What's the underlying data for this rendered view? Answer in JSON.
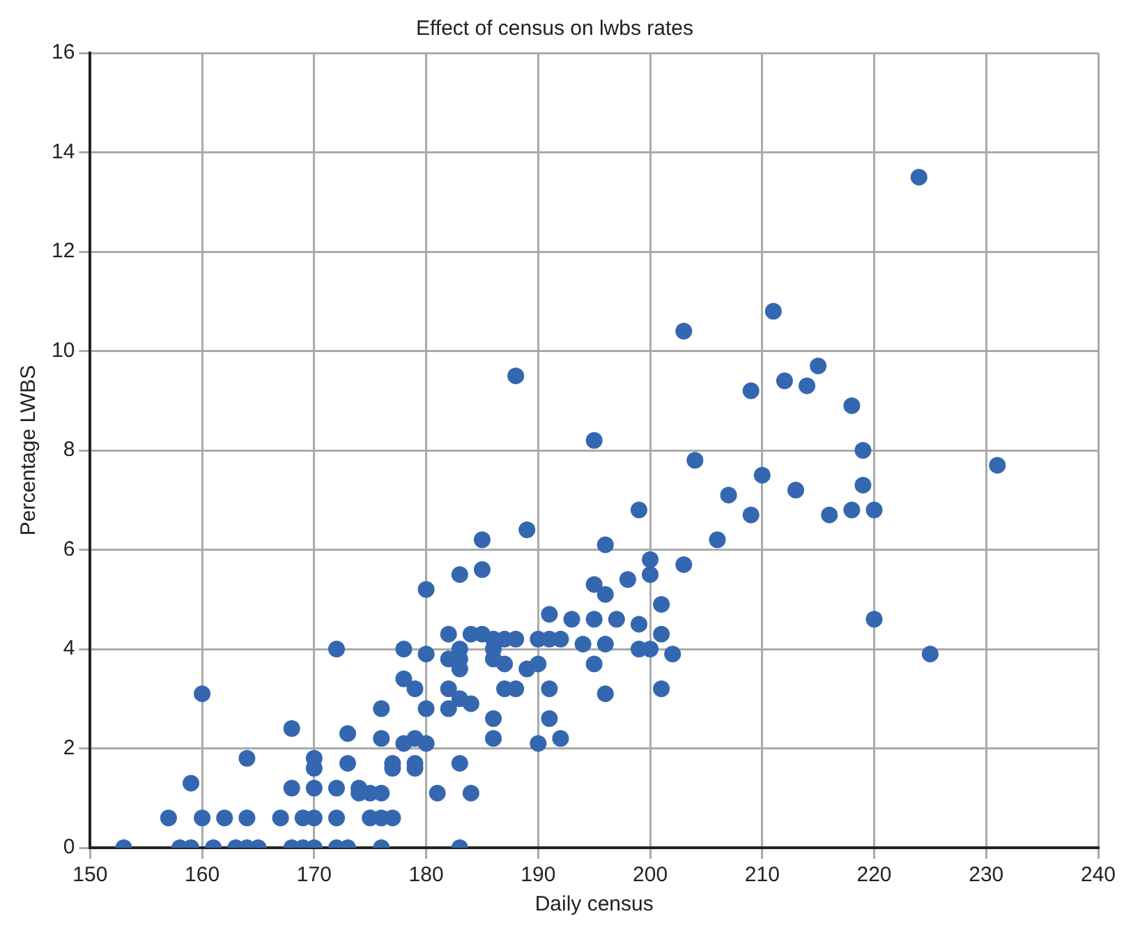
{
  "chart_data": {
    "type": "scatter",
    "title": "Effect of census on lwbs rates",
    "xlabel": "Daily census",
    "ylabel": "Percentage LWBS",
    "x": [
      153,
      157,
      158,
      159,
      159,
      160,
      160,
      161,
      162,
      163,
      164,
      164,
      164,
      165,
      167,
      168,
      168,
      168,
      169,
      169,
      170,
      170,
      170,
      170,
      170,
      172,
      172,
      172,
      172,
      173,
      173,
      173,
      174,
      174,
      175,
      175,
      176,
      176,
      176,
      176,
      176,
      177,
      177,
      177,
      178,
      178,
      178,
      179,
      179,
      179,
      179,
      180,
      180,
      180,
      180,
      181,
      182,
      182,
      182,
      182,
      183,
      183,
      183,
      183,
      183,
      183,
      183,
      184,
      184,
      184,
      185,
      185,
      185,
      186,
      186,
      186,
      186,
      186,
      187,
      187,
      187,
      188,
      188,
      188,
      189,
      189,
      190,
      190,
      190,
      191,
      191,
      191,
      191,
      192,
      192,
      193,
      194,
      195,
      195,
      195,
      195,
      196,
      196,
      196,
      196,
      197,
      198,
      199,
      199,
      199,
      200,
      200,
      200,
      201,
      201,
      201,
      202,
      203,
      203,
      204,
      206,
      207,
      209,
      209,
      210,
      211,
      212,
      213,
      214,
      215,
      216,
      218,
      218,
      219,
      219,
      220,
      220,
      224,
      225,
      231
    ],
    "values": [
      0,
      0.6,
      0,
      0,
      1.3,
      3.1,
      0.6,
      0,
      0.6,
      0,
      0,
      0.6,
      1.8,
      0,
      0.6,
      2.4,
      0,
      1.2,
      0.6,
      0,
      1.2,
      1.8,
      1.6,
      0.6,
      0,
      4.0,
      1.2,
      0.6,
      0,
      2.3,
      1.7,
      0,
      1.2,
      1.1,
      1.1,
      0.6,
      1.1,
      0.6,
      0,
      2.8,
      2.2,
      0.6,
      1.7,
      1.6,
      4.0,
      3.4,
      2.1,
      3.2,
      2.2,
      1.7,
      1.6,
      5.2,
      3.9,
      2.8,
      2.1,
      1.1,
      4.3,
      3.8,
      3.2,
      2.8,
      5.5,
      4.0,
      3.8,
      3.6,
      3.0,
      1.7,
      0,
      4.3,
      2.9,
      1.1,
      6.2,
      5.6,
      4.3,
      4.0,
      3.8,
      4.2,
      2.6,
      2.2,
      3.2,
      3.7,
      4.2,
      9.5,
      4.2,
      3.2,
      6.4,
      3.6,
      4.2,
      2.1,
      3.7,
      4.7,
      3.2,
      2.6,
      4.2,
      4.2,
      2.2,
      4.6,
      4.1,
      8.2,
      5.3,
      4.6,
      3.7,
      6.1,
      5.1,
      4.1,
      3.1,
      4.6,
      5.4,
      4.5,
      6.8,
      4.0,
      5.8,
      5.5,
      4.0,
      4.9,
      4.3,
      3.2,
      3.9,
      10.4,
      5.7,
      7.8,
      6.2,
      7.1,
      9.2,
      6.7,
      7.5,
      10.8,
      9.4,
      7.2,
      9.3,
      9.7,
      6.7,
      8.9,
      6.8,
      8.0,
      7.3,
      6.8,
      4.6,
      13.5,
      3.9,
      7.7
    ],
    "color": "#3467b0",
    "marker": "circle",
    "xlim": [
      150,
      240
    ],
    "xticks": [
      150,
      160,
      170,
      180,
      190,
      200,
      210,
      220,
      230,
      240
    ],
    "ylim": [
      0,
      16
    ],
    "yticks": [
      0,
      2,
      4,
      6,
      8,
      10,
      12,
      14,
      16
    ],
    "grid": true,
    "legend": false
  }
}
